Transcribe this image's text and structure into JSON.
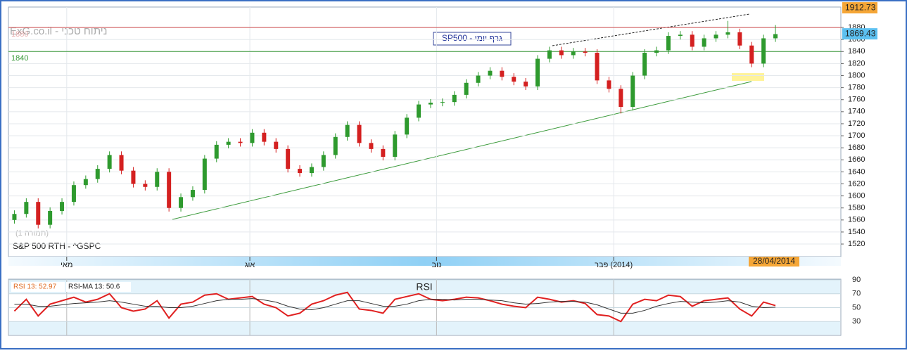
{
  "chart_data": {
    "type": "candlestick",
    "watermark": "ExG.co.il - ניתוח טכני",
    "title": "SP500 - גרף יומי",
    "symbol": "S&P 500 RTH - ^GSPC",
    "caption": "(תמורה 1)",
    "last_date": "28/04/2014",
    "up_color": "#2e9a2e",
    "down_color": "#d42020",
    "xlim": [
      -0.5,
      69.5
    ],
    "xticks": [
      {
        "value": 4.4,
        "label": "מאי"
      },
      {
        "value": 19.8,
        "label": "אוג"
      },
      {
        "value": 35.5,
        "label": "נוב"
      },
      {
        "value": 50.4,
        "label": "(2014) פבר"
      }
    ],
    "ylim": [
      1499,
      1914
    ],
    "yticks": [
      1520,
      1540,
      1560,
      1580,
      1600,
      1620,
      1640,
      1660,
      1680,
      1700,
      1720,
      1740,
      1760,
      1780,
      1800,
      1820,
      1840,
      1860,
      1880
    ],
    "hlines": [
      {
        "value": 1880,
        "color": "#d05050"
      },
      {
        "value": 1840,
        "color": "#3a9a3a"
      }
    ],
    "price_tags": [
      {
        "value": 1912.73,
        "color": "#f5a637"
      },
      {
        "value": 1869.43,
        "color": "#5cc0f0"
      }
    ],
    "open": [
      1560,
      1570,
      1590,
      1552,
      1575,
      1590,
      1618,
      1628,
      1645,
      1668,
      1642,
      1620,
      1615,
      1640,
      1580,
      1598,
      1610,
      1662,
      1685,
      1690,
      1688,
      1705,
      1690,
      1678,
      1645,
      1638,
      1648,
      1668,
      1698,
      1718,
      1688,
      1678,
      1665,
      1702,
      1730,
      1752,
      1755,
      1756,
      1768,
      1788,
      1800,
      1808,
      1798,
      1790,
      1782,
      1828,
      1842,
      1834,
      1840,
      1838,
      1792,
      1778,
      1748,
      1800,
      1838,
      1842,
      1866,
      1868,
      1848,
      1862,
      1868,
      1872,
      1850,
      1820,
      1862
    ],
    "high": [
      1576,
      1596,
      1596,
      1581,
      1596,
      1624,
      1634,
      1651,
      1674,
      1674,
      1648,
      1626,
      1646,
      1646,
      1604,
      1616,
      1668,
      1691,
      1696,
      1696,
      1711,
      1711,
      1696,
      1684,
      1651,
      1654,
      1674,
      1704,
      1724,
      1724,
      1694,
      1684,
      1708,
      1736,
      1758,
      1761,
      1762,
      1774,
      1794,
      1806,
      1814,
      1814,
      1804,
      1796,
      1834,
      1848,
      1848,
      1846,
      1846,
      1844,
      1798,
      1784,
      1806,
      1844,
      1848,
      1872,
      1874,
      1874,
      1868,
      1874,
      1891,
      1878,
      1856,
      1868,
      1884
    ],
    "low": [
      1554,
      1564,
      1546,
      1546,
      1569,
      1584,
      1612,
      1622,
      1639,
      1636,
      1614,
      1609,
      1609,
      1574,
      1574,
      1592,
      1604,
      1656,
      1679,
      1682,
      1682,
      1684,
      1672,
      1639,
      1632,
      1632,
      1642,
      1662,
      1692,
      1682,
      1672,
      1659,
      1659,
      1696,
      1724,
      1746,
      1749,
      1750,
      1762,
      1782,
      1794,
      1792,
      1784,
      1776,
      1776,
      1822,
      1828,
      1828,
      1832,
      1786,
      1772,
      1737,
      1742,
      1794,
      1832,
      1836,
      1860,
      1842,
      1842,
      1856,
      1862,
      1844,
      1814,
      1814,
      1856
    ],
    "close": [
      1570,
      1590,
      1552,
      1575,
      1590,
      1618,
      1628,
      1645,
      1668,
      1642,
      1620,
      1615,
      1640,
      1580,
      1598,
      1610,
      1662,
      1685,
      1690,
      1688,
      1705,
      1690,
      1678,
      1645,
      1638,
      1648,
      1668,
      1698,
      1718,
      1688,
      1678,
      1665,
      1702,
      1730,
      1752,
      1755,
      1756,
      1768,
      1788,
      1800,
      1808,
      1798,
      1790,
      1782,
      1828,
      1842,
      1834,
      1840,
      1838,
      1792,
      1778,
      1748,
      1800,
      1838,
      1842,
      1866,
      1868,
      1848,
      1862,
      1868,
      1872,
      1850,
      1820,
      1862,
      1869
    ],
    "rsi": {
      "title": "RSI",
      "ylim": [
        10,
        91
      ],
      "yticks": [
        30,
        50,
        70,
        90
      ],
      "series": [
        {
          "name": "RSI 13: 52.97",
          "color": "#e02020",
          "values": [
            45,
            62,
            38,
            55,
            60,
            65,
            58,
            62,
            70,
            50,
            45,
            48,
            60,
            35,
            55,
            58,
            68,
            70,
            62,
            64,
            66,
            55,
            50,
            38,
            42,
            55,
            60,
            68,
            72,
            48,
            46,
            42,
            62,
            66,
            70,
            62,
            60,
            62,
            65,
            64,
            60,
            55,
            52,
            50,
            65,
            62,
            58,
            60,
            56,
            40,
            38,
            30,
            55,
            62,
            60,
            68,
            66,
            52,
            60,
            62,
            64,
            48,
            38,
            58,
            52.97
          ]
        },
        {
          "name": "RSI-MA 13: 50.6",
          "color": "#333333",
          "values": [
            55,
            55,
            52,
            52,
            54,
            56,
            57,
            58,
            60,
            58,
            55,
            52,
            52,
            50,
            50,
            52,
            56,
            60,
            62,
            62,
            63,
            61,
            58,
            52,
            48,
            47,
            50,
            55,
            60,
            60,
            56,
            52,
            52,
            55,
            60,
            62,
            62,
            61,
            62,
            62,
            61,
            60,
            57,
            55,
            56,
            58,
            59,
            59,
            58,
            54,
            48,
            42,
            42,
            46,
            52,
            56,
            59,
            58,
            57,
            58,
            60,
            58,
            52,
            50,
            50.6
          ]
        }
      ]
    }
  }
}
